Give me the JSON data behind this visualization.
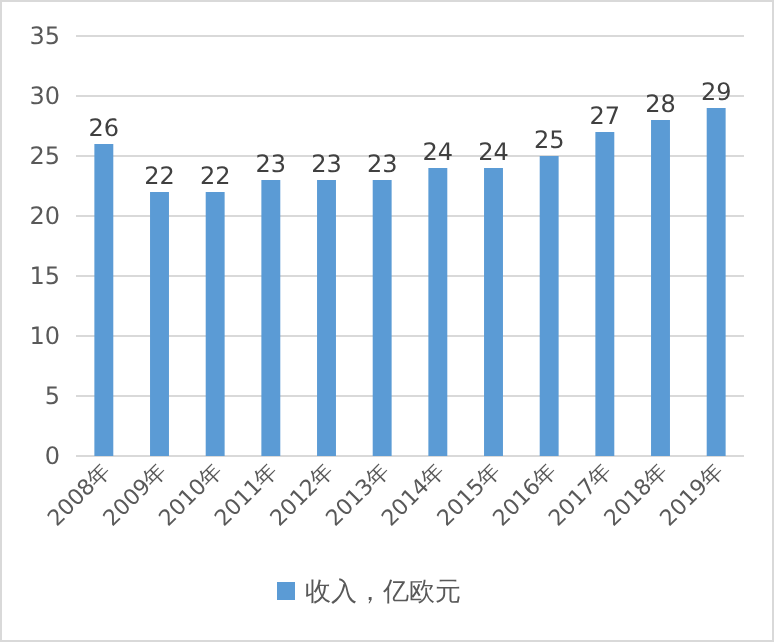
{
  "chart_data": {
    "type": "bar",
    "categories": [
      "2008年",
      "2009年",
      "2010年",
      "2011年",
      "2012年",
      "2013年",
      "2014年",
      "2015年",
      "2016年",
      "2017年",
      "2018年",
      "2019年"
    ],
    "series": [
      {
        "name": "收入，亿欧元",
        "color": "#5b9bd5",
        "values": [
          26,
          22,
          22,
          23,
          23,
          23,
          24,
          24,
          25,
          27,
          28,
          29
        ]
      }
    ],
    "ylim": [
      0,
      35
    ],
    "yticks": [
      0,
      5,
      10,
      15,
      20,
      25,
      30,
      35
    ],
    "grid": "y",
    "data_labels": true,
    "legend": "bottom"
  }
}
